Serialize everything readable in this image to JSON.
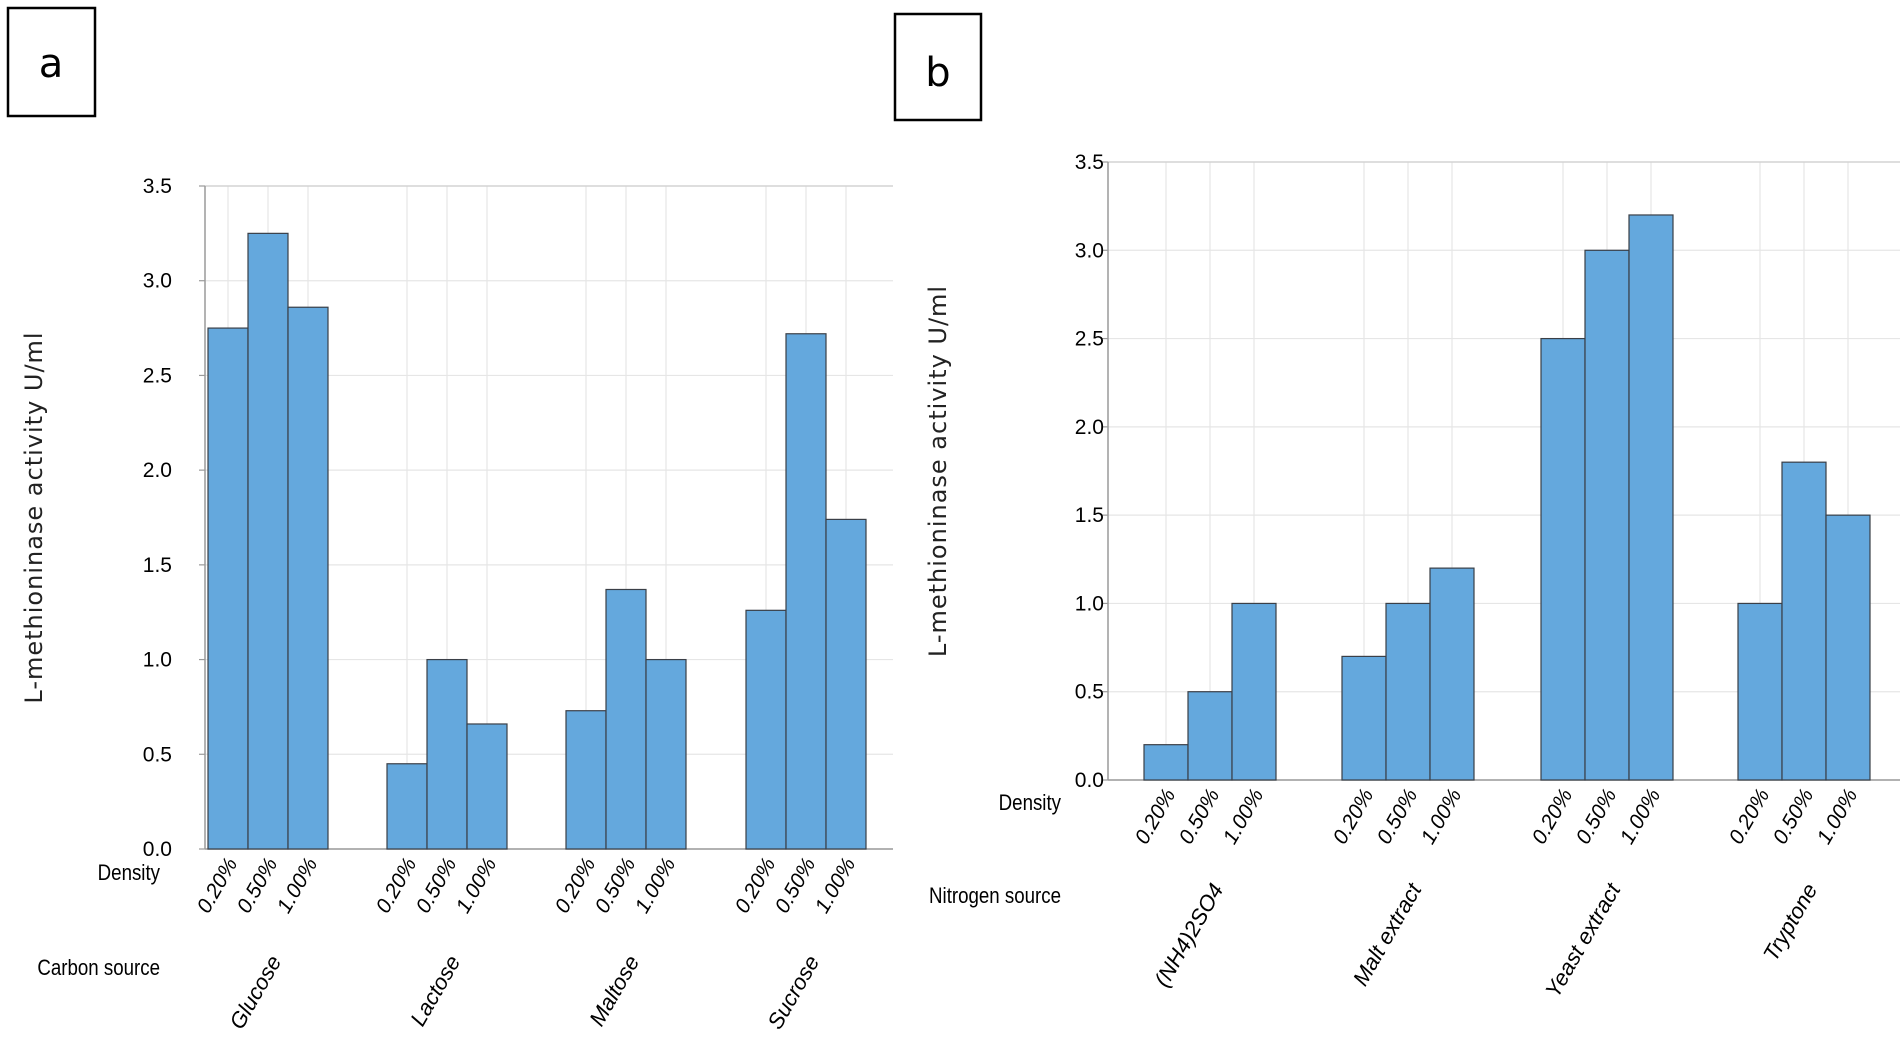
{
  "chart_data": [
    {
      "panel": "a",
      "type": "bar",
      "ylabel": "L-methioninase activity U/ml",
      "ylim": [
        0,
        3.5
      ],
      "yticks": [
        "0.0",
        "0.5",
        "1.0",
        "1.5",
        "2.0",
        "2.5",
        "3.0",
        "3.5"
      ],
      "grid": true,
      "row_labels": {
        "level": "Density",
        "group": "Carbon source"
      },
      "levels": [
        "0.20%",
        "0.50%",
        "1.00%"
      ],
      "groups": [
        {
          "name": "Glucose",
          "values": [
            2.75,
            3.25,
            2.86
          ]
        },
        {
          "name": "Lactose",
          "values": [
            0.45,
            1.0,
            0.66
          ]
        },
        {
          "name": "Maltose",
          "values": [
            0.73,
            1.37,
            1.0
          ]
        },
        {
          "name": "Sucrose",
          "values": [
            1.26,
            2.72,
            1.74
          ]
        }
      ]
    },
    {
      "panel": "b",
      "type": "bar",
      "ylabel": "L-methioninase activity U/ml",
      "ylim": [
        0,
        3.5
      ],
      "yticks": [
        "0.0",
        "0.5",
        "1.0",
        "1.5",
        "2.0",
        "2.5",
        "3.0",
        "3.5"
      ],
      "grid": true,
      "row_labels": {
        "level": "Density",
        "group": "Nitrogen source"
      },
      "levels": [
        "0.20%",
        "0.50%",
        "1.00%"
      ],
      "groups": [
        {
          "name": "(NH4)2SO4",
          "values": [
            0.2,
            0.5,
            1.0
          ]
        },
        {
          "name": "Malt extract",
          "values": [
            0.7,
            1.0,
            1.2
          ]
        },
        {
          "name": "Yeast extract",
          "values": [
            2.5,
            3.0,
            3.2
          ]
        },
        {
          "name": "Tryptone",
          "values": [
            1.0,
            1.8,
            1.5
          ]
        }
      ]
    }
  ],
  "colors": {
    "bar_fill": "#64a8dd",
    "bar_stroke": "#3a3f47",
    "grid": "#e6e6e6",
    "axis": "#9a9a9a"
  }
}
